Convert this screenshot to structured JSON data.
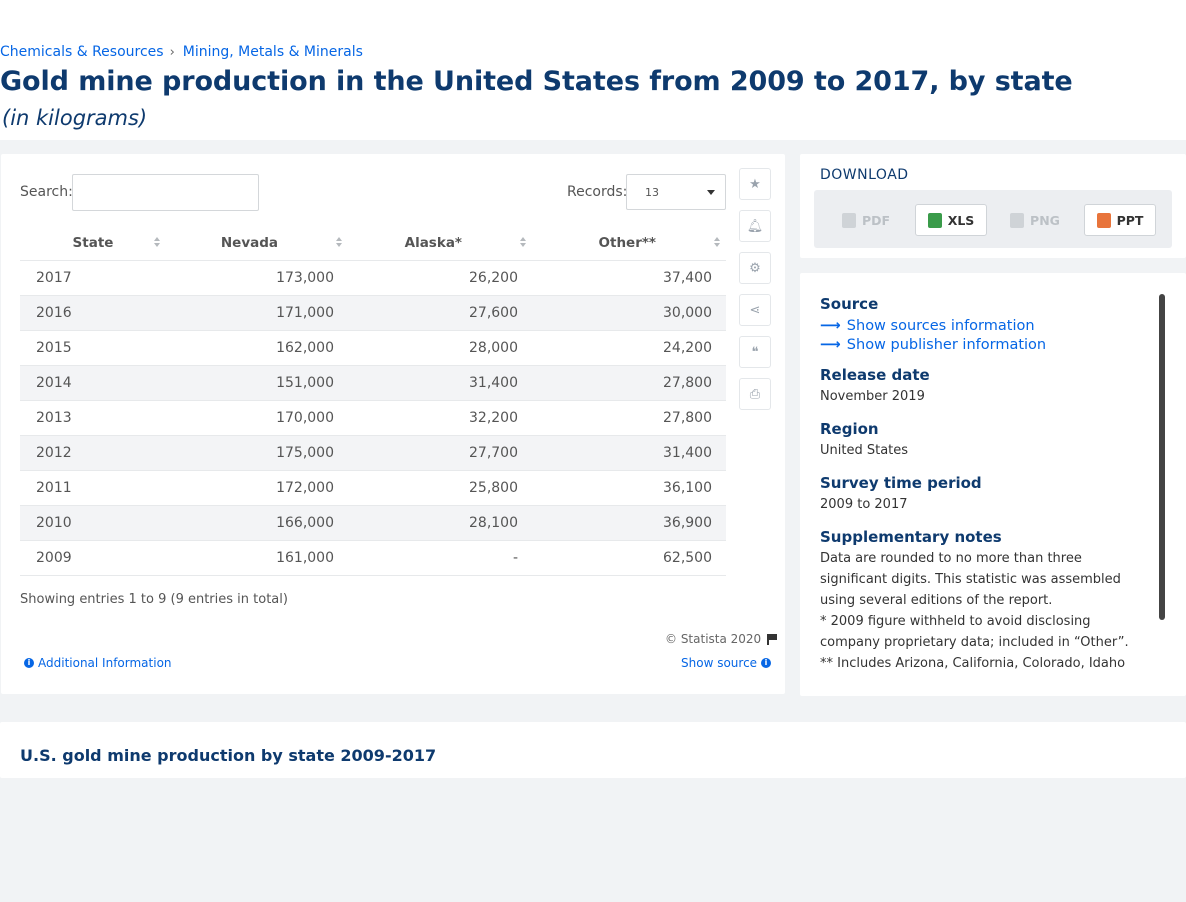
{
  "breadcrumb": {
    "items": [
      "Chemicals & Resources",
      "Mining, Metals & Minerals"
    ],
    "separator": "›"
  },
  "title": "Gold mine production in the United States from 2009 to 2017, by state",
  "subtitle": "(in kilograms)",
  "controls": {
    "search_label": "Search:",
    "search_value": "",
    "records_label": "Records:",
    "records_value": "13"
  },
  "table": {
    "headers": [
      "State",
      "Nevada",
      "Alaska*",
      "Other**"
    ],
    "rows": [
      [
        "2017",
        "173,000",
        "26,200",
        "37,400"
      ],
      [
        "2016",
        "171,000",
        "27,600",
        "30,000"
      ],
      [
        "2015",
        "162,000",
        "28,000",
        "24,200"
      ],
      [
        "2014",
        "151,000",
        "31,400",
        "27,800"
      ],
      [
        "2013",
        "170,000",
        "32,200",
        "27,800"
      ],
      [
        "2012",
        "175,000",
        "27,700",
        "31,400"
      ],
      [
        "2011",
        "172,000",
        "25,800",
        "36,100"
      ],
      [
        "2010",
        "166,000",
        "28,100",
        "36,900"
      ],
      [
        "2009",
        "161,000",
        "-",
        "62,500"
      ]
    ]
  },
  "showing": "Showing entries 1 to 9 (9 entries in total)",
  "copyright": "© Statista 2020",
  "additional_info": "Additional Information",
  "show_source": "Show source",
  "toolbar_icons": [
    "star-icon",
    "bell-icon",
    "gear-icon",
    "share-icon",
    "quote-icon",
    "print-icon"
  ],
  "download": {
    "title": "DOWNLOAD",
    "buttons": [
      {
        "label": "PDF",
        "enabled": false
      },
      {
        "label": "XLS",
        "enabled": true
      },
      {
        "label": "PNG",
        "enabled": false
      },
      {
        "label": "PPT",
        "enabled": true
      }
    ]
  },
  "source": {
    "heading": "Source",
    "link_sources": "Show sources information",
    "link_publisher": "Show publisher information",
    "release_label": "Release date",
    "release_value": "November 2019",
    "region_label": "Region",
    "region_value": "United States",
    "period_label": "Survey time period",
    "period_value": "2009 to 2017",
    "notes_label": "Supplementary notes",
    "notes_1": "Data are rounded to no more than three significant digits. This statistic was assembled using several editions of the report.",
    "notes_2": "* 2009 figure withheld to avoid disclosing company proprietary data; included in “Other”.",
    "notes_3": "** Includes Arizona, California, Colorado, Idaho"
  },
  "bottom_title": "U.S. gold mine production by state 2009-2017",
  "colors": {
    "accent": "#0666e5",
    "title": "#0e3a6e",
    "background": "#f1f3f5"
  }
}
